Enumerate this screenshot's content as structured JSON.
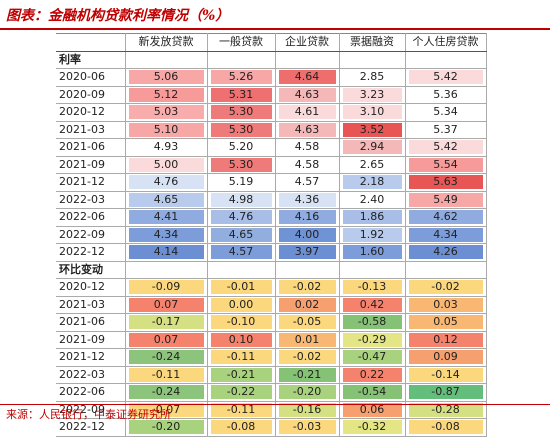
{
  "title": "图表：金融机构贷款利率情况（%）",
  "source": "来源：人民银行，中泰证券研究所",
  "columns": [
    "新发放贷款",
    "一般贷款",
    "企业贷款",
    "票据融资",
    "个人住房贷款"
  ],
  "sections": [
    {
      "label": "利率",
      "rows": [
        {
          "date": "2020-06",
          "values": [
            "5.06",
            "5.26",
            "4.64",
            "2.85",
            "5.42"
          ],
          "colors": [
            "#f8a7a7",
            "#f8a7a7",
            "#ee6e6e",
            "#fff",
            "#fadada"
          ]
        },
        {
          "date": "2020-09",
          "values": [
            "5.12",
            "5.31",
            "4.63",
            "3.23",
            "5.36"
          ],
          "colors": [
            "#f79a9a",
            "#ee7070",
            "#f5b8b8",
            "#fadada",
            "#fff"
          ]
        },
        {
          "date": "2020-12",
          "values": [
            "5.03",
            "5.30",
            "4.61",
            "3.10",
            "5.34"
          ],
          "colors": [
            "#f8acac",
            "#ef7a7a",
            "#fadada",
            "#fadada",
            "#fff"
          ]
        },
        {
          "date": "2021-03",
          "values": [
            "5.10",
            "5.30",
            "4.63",
            "3.52",
            "5.37"
          ],
          "colors": [
            "#f8a7a7",
            "#ef7a7a",
            "#f5b8b8",
            "#e85555",
            "#fff"
          ]
        },
        {
          "date": "2021-06",
          "values": [
            "4.93",
            "5.20",
            "4.58",
            "2.94",
            "5.42"
          ],
          "colors": [
            "#fff",
            "#fff",
            "#fff",
            "#f5b8b8",
            "#fadada"
          ]
        },
        {
          "date": "2021-09",
          "values": [
            "5.00",
            "5.30",
            "4.58",
            "2.65",
            "5.54"
          ],
          "colors": [
            "#fadada",
            "#ef7a7a",
            "#fff",
            "#fff",
            "#f79a9a"
          ]
        },
        {
          "date": "2021-12",
          "values": [
            "4.76",
            "5.19",
            "4.57",
            "2.18",
            "5.63"
          ],
          "colors": [
            "#d7e2f4",
            "#fff",
            "#fff",
            "#b9cbec",
            "#e85555"
          ]
        },
        {
          "date": "2022-03",
          "values": [
            "4.65",
            "4.98",
            "4.36",
            "2.40",
            "5.49"
          ],
          "colors": [
            "#b9cbec",
            "#d7e2f4",
            "#d7e2f4",
            "#fff",
            "#f8a7a7"
          ]
        },
        {
          "date": "2022-06",
          "values": [
            "4.41",
            "4.76",
            "4.16",
            "1.86",
            "4.62"
          ],
          "colors": [
            "#8fabdf",
            "#a8bee6",
            "#8fabdf",
            "#a8bee6",
            "#8fabdf"
          ]
        },
        {
          "date": "2022-09",
          "values": [
            "4.34",
            "4.65",
            "4.00",
            "1.92",
            "4.34"
          ],
          "colors": [
            "#7c9dd9",
            "#92aedf",
            "#6f93d4",
            "#b9cbec",
            "#7c9dd9"
          ]
        },
        {
          "date": "2022-12",
          "values": [
            "4.14",
            "4.57",
            "3.97",
            "1.60",
            "4.26"
          ],
          "colors": [
            "#6b8fd2",
            "#7c9dd9",
            "#6b8fd2",
            "#7c9dd9",
            "#6b8fd2"
          ]
        }
      ]
    },
    {
      "label": "环比变动",
      "rows": [
        {
          "date": "2020-12",
          "values": [
            "-0.09",
            "-0.01",
            "-0.02",
            "-0.13",
            "-0.02"
          ],
          "colors": [
            "#fbd77e",
            "#fbd77e",
            "#fbd77e",
            "#fbd77e",
            "#fbd77e"
          ]
        },
        {
          "date": "2021-03",
          "values": [
            "0.07",
            "0.00",
            "0.02",
            "0.42",
            "0.03"
          ],
          "colors": [
            "#f4826c",
            "#fbd77e",
            "#f6a070",
            "#f4826c",
            "#f8b874"
          ]
        },
        {
          "date": "2021-06",
          "values": [
            "-0.17",
            "-0.10",
            "-0.05",
            "-0.58",
            "0.05"
          ],
          "colors": [
            "#d4e082",
            "#fbd77e",
            "#fbd77e",
            "#86c275",
            "#f8b874"
          ]
        },
        {
          "date": "2021-09",
          "values": [
            "0.07",
            "0.10",
            "0.01",
            "-0.29",
            "0.12"
          ],
          "colors": [
            "#f4826c",
            "#f4826c",
            "#f8b874",
            "#e4e584",
            "#f4826c"
          ]
        },
        {
          "date": "2021-12",
          "values": [
            "-0.24",
            "-0.11",
            "-0.02",
            "-0.47",
            "0.09"
          ],
          "colors": [
            "#8bc47a",
            "#fbd77e",
            "#fbd77e",
            "#a9d27f",
            "#f6a070"
          ]
        },
        {
          "date": "2022-03",
          "values": [
            "-0.11",
            "-0.21",
            "-0.21",
            "0.22",
            "-0.14"
          ],
          "colors": [
            "#fbd77e",
            "#a9d27f",
            "#86c275",
            "#f4826c",
            "#fbd77e"
          ]
        },
        {
          "date": "2022-06",
          "values": [
            "-0.24",
            "-0.22",
            "-0.20",
            "-0.54",
            "-0.87"
          ],
          "colors": [
            "#8bc47a",
            "#a9d27f",
            "#a9d27f",
            "#86c275",
            "#63be7b"
          ]
        },
        {
          "date": "2022-09",
          "values": [
            "-0.07",
            "-0.11",
            "-0.16",
            "0.06",
            "-0.28"
          ],
          "colors": [
            "#fbd77e",
            "#fbd77e",
            "#d4e082",
            "#f6a070",
            "#d4e082"
          ]
        },
        {
          "date": "2022-12",
          "values": [
            "-0.20",
            "-0.08",
            "-0.03",
            "-0.32",
            "-0.08"
          ],
          "colors": [
            "#a9d27f",
            "#fbd77e",
            "#fbd77e",
            "#e4e584",
            "#fbd77e"
          ]
        }
      ]
    }
  ]
}
